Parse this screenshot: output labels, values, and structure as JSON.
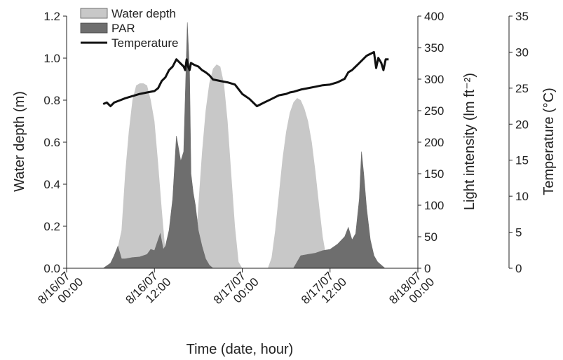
{
  "chart_data": {
    "type": "area",
    "xlabel": "Time (date, hour)",
    "x_ticks": [
      {
        "date": "8/16/07",
        "hour": "00:00"
      },
      {
        "date": "8/16/07",
        "hour": "12:00"
      },
      {
        "date": "8/17/07",
        "hour": "00:00"
      },
      {
        "date": "8/17/07",
        "hour": "12:00"
      },
      {
        "date": "8/18/07",
        "hour": "00:00"
      }
    ],
    "xlim_hours": [
      0,
      48
    ],
    "axes": {
      "left": {
        "label": "Water depth (m)",
        "ylim": [
          0,
          1.2
        ],
        "ticks": [
          "0.0",
          "0.2",
          "0.4",
          "0.6",
          "0.8",
          "1.0",
          "1.2"
        ]
      },
      "right1": {
        "label": "Light intensity (lm ft⁻²)",
        "ylim": [
          0,
          400
        ],
        "ticks": [
          "0",
          "50",
          "100",
          "150",
          "200",
          "250",
          "300",
          "350",
          "400"
        ]
      },
      "right2": {
        "label": "Temperature (°C)",
        "ylim": [
          0,
          35
        ],
        "ticks": [
          "0",
          "5",
          "10",
          "15",
          "20",
          "25",
          "30",
          "35"
        ]
      }
    },
    "legend": {
      "placement": "top-left",
      "entries": [
        "Water depth",
        "PAR",
        "Temperature"
      ]
    },
    "colors": {
      "water": "#c8c8c8",
      "par": "#6e6e6e",
      "temp": "#111111"
    },
    "series": [
      {
        "name": "Water depth",
        "axis": "left",
        "x": [
          5.5,
          6.5,
          7.0,
          7.5,
          8.0,
          8.5,
          9.0,
          9.5,
          10.0,
          10.5,
          11.0,
          11.5,
          12.0,
          12.5,
          13.0,
          13.5,
          14.0,
          14.5,
          15.0,
          15.5,
          16.0,
          16.5,
          17.0,
          17.5,
          18.0,
          18.5,
          19.0,
          19.5,
          20.0,
          20.5,
          21.0,
          21.5,
          22.0,
          22.5,
          23.0,
          23.5,
          24.0,
          24.5,
          25.0,
          25.5,
          26.0,
          26.5,
          27.0,
          27.5,
          28.0,
          28.5,
          29.0,
          29.5,
          30.0,
          30.5,
          31.0,
          31.5,
          32.0,
          32.5,
          33.0,
          33.5,
          34.0,
          34.5,
          35.0,
          35.5,
          36.0,
          36.5,
          37.0,
          37.5,
          38.0,
          38.5,
          39.0,
          40.0
        ],
        "values": [
          0.0,
          0.04,
          0.1,
          0.18,
          0.45,
          0.65,
          0.8,
          0.87,
          0.88,
          0.88,
          0.87,
          0.8,
          0.7,
          0.5,
          0.28,
          0.08,
          0.0,
          0.0,
          0.0,
          0.0,
          0.0,
          0.0,
          0.0,
          0.05,
          0.3,
          0.55,
          0.75,
          0.88,
          0.95,
          0.97,
          0.96,
          0.88,
          0.7,
          0.45,
          0.2,
          0.03,
          0.0,
          0.0,
          0.0,
          0.0,
          0.0,
          0.0,
          0.0,
          0.0,
          0.05,
          0.18,
          0.35,
          0.52,
          0.65,
          0.74,
          0.79,
          0.81,
          0.8,
          0.76,
          0.7,
          0.6,
          0.46,
          0.3,
          0.15,
          0.05,
          0.0,
          0.0,
          0.0,
          0.0,
          0.0,
          0.0,
          0.0,
          0.0
        ]
      },
      {
        "name": "PAR",
        "axis": "right1",
        "x": [
          5.0,
          6.0,
          6.5,
          7.0,
          7.5,
          8.0,
          9.0,
          10.0,
          11.0,
          11.5,
          12.0,
          12.5,
          12.8,
          13.2,
          13.5,
          14.0,
          14.5,
          15.0,
          15.3,
          15.6,
          16.0,
          16.5,
          16.8,
          17.0,
          17.3,
          17.6,
          18.0,
          18.5,
          19.0,
          19.5,
          20.0,
          21.0,
          30.0,
          31.0,
          32.0,
          33.0,
          34.0,
          35.0,
          36.0,
          37.0,
          38.0,
          38.5,
          39.0,
          39.5,
          40.0,
          40.3,
          40.6,
          41.0,
          41.5,
          42.0,
          42.5,
          43.0,
          43.5,
          44.0
        ],
        "values": [
          0,
          8,
          20,
          35,
          15,
          15,
          17,
          18,
          22,
          30,
          28,
          45,
          55,
          30,
          35,
          60,
          110,
          210,
          190,
          170,
          185,
          390,
          310,
          150,
          120,
          100,
          60,
          35,
          15,
          5,
          0,
          0,
          0,
          0,
          20,
          22,
          24,
          28,
          30,
          38,
          50,
          65,
          45,
          55,
          110,
          185,
          150,
          95,
          45,
          20,
          10,
          5,
          0,
          0
        ]
      },
      {
        "name": "Temperature",
        "axis": "right2",
        "x": [
          5.0,
          5.5,
          6.0,
          6.5,
          7.0,
          8.0,
          9.0,
          10.0,
          11.0,
          12.0,
          12.5,
          13.0,
          13.5,
          14.0,
          14.5,
          15.0,
          15.5,
          16.0,
          16.2,
          16.4,
          16.6,
          16.8,
          17.0,
          17.5,
          18.0,
          18.5,
          19.0,
          19.5,
          20.0,
          21.0,
          22.0,
          23.0,
          24.0,
          25.0,
          26.0,
          27.0,
          28.0,
          29.0,
          30.0,
          30.5,
          31.0,
          32.0,
          33.0,
          34.0,
          35.0,
          36.0,
          37.0,
          38.0,
          38.5,
          39.0,
          39.5,
          40.0,
          41.0,
          42.0,
          42.3,
          42.6,
          43.0,
          43.3,
          43.6,
          44.0
        ],
        "values": [
          22.8,
          23.0,
          22.5,
          23.0,
          23.2,
          23.6,
          23.9,
          24.2,
          24.4,
          24.6,
          25.0,
          26.0,
          26.5,
          27.5,
          28.0,
          29.0,
          28.5,
          28.0,
          27.5,
          29.0,
          28.0,
          27.5,
          28.5,
          28.2,
          28.0,
          27.5,
          27.2,
          26.8,
          26.2,
          26.0,
          25.8,
          25.5,
          24.2,
          23.5,
          22.5,
          23.0,
          23.5,
          24.0,
          24.2,
          24.4,
          24.5,
          24.8,
          25.0,
          25.2,
          25.4,
          25.5,
          25.8,
          26.3,
          27.2,
          27.5,
          28.0,
          28.5,
          29.5,
          30.0,
          27.8,
          29.2,
          28.5,
          27.5,
          29.0,
          29.0
        ]
      }
    ]
  }
}
